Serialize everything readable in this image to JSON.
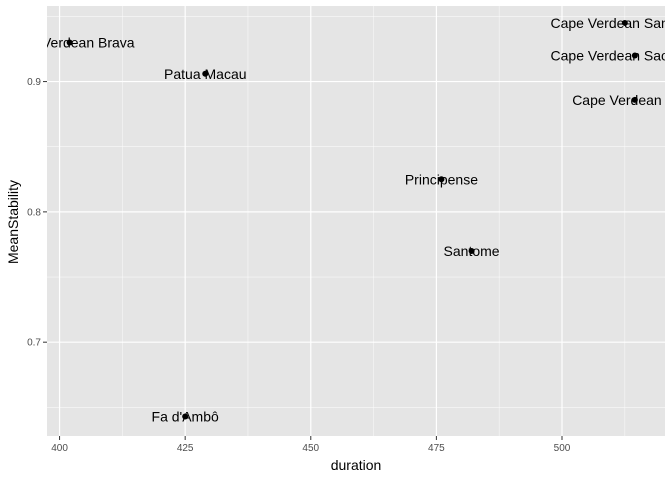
{
  "chart_data": {
    "type": "scatter",
    "title": "",
    "xlabel": "duration",
    "ylabel": "MeanStability",
    "xlim": [
      397.5,
      520.5
    ],
    "ylim": [
      0.628,
      0.958
    ],
    "xticks": [
      400,
      425,
      450,
      475,
      500
    ],
    "xtick_labels": [
      "400",
      "425",
      "450",
      "475",
      "500"
    ],
    "yticks": [
      0.7,
      0.8,
      0.9
    ],
    "ytick_labels": [
      "0.7",
      "0.8",
      "0.9"
    ],
    "grid": true,
    "points": [
      {
        "x": 402.0,
        "y": 0.93,
        "label": "Cape Verdean Brava"
      },
      {
        "x": 429.0,
        "y": 0.906,
        "label": "Patua Macau"
      },
      {
        "x": 425.0,
        "y": 0.643,
        "label": "Fa d'Ambô"
      },
      {
        "x": 476.0,
        "y": 0.825,
        "label": "Principense"
      },
      {
        "x": 482.0,
        "y": 0.77,
        "label": "Santome"
      },
      {
        "x": 512.5,
        "y": 0.945,
        "label": "Cape Verdean Santiago"
      },
      {
        "x": 514.5,
        "y": 0.92,
        "label": "Cape Verdean Sao Vicente"
      },
      {
        "x": 514.5,
        "y": 0.886,
        "label": "Cape Verdean Fogo"
      }
    ],
    "colors": {
      "panel": "#e5e5e5",
      "grid_major": "#ffffff",
      "point": "#000000",
      "tick_text": "#4d4d4d"
    }
  }
}
